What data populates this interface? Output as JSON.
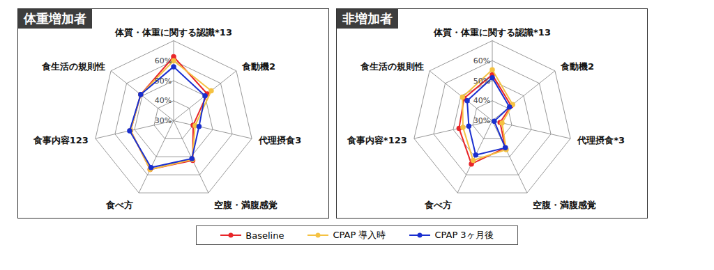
{
  "chart_data": [
    {
      "type": "radar",
      "title": "体重増加者",
      "categories": [
        "体質・体重に関する認識*13",
        "食動機2",
        "代理摂食3",
        "空腹・満腹感覚",
        "食べ方",
        "食事内容123",
        "食生活の規則性"
      ],
      "ylim": [
        30,
        70
      ],
      "yticks": [
        {
          "value": 30,
          "label": "30%"
        },
        {
          "value": 40,
          "label": "40%"
        },
        {
          "value": 50,
          "label": "50%"
        },
        {
          "value": 60,
          "label": "60%"
        }
      ],
      "grid": true,
      "legend": "bottom",
      "series": [
        {
          "name": "Baseline",
          "color": "#e8262a",
          "marker": "circle",
          "values": [
            62,
            51.5,
            40,
            52,
            57,
            52,
            51
          ]
        },
        {
          "name": "CPAP 導入時",
          "color": "#f5c242",
          "marker": "circle",
          "values": [
            60,
            54,
            41,
            51.5,
            57,
            52,
            51
          ]
        },
        {
          "name": "CPAP 3ヶ月後",
          "color": "#1a2fcf",
          "marker": "circle",
          "values": [
            57,
            50,
            43,
            51,
            56,
            52.5,
            51
          ]
        }
      ]
    },
    {
      "type": "radar",
      "title": "非増加者",
      "categories": [
        "体質・体重に関する認識*13",
        "食動機2",
        "代理摂食*3",
        "空腹・満腹感覚",
        "食べ方",
        "食事内容*123",
        "食生活の規則性"
      ],
      "ylim": [
        30,
        70
      ],
      "yticks": [
        {
          "value": 30,
          "label": "30%"
        },
        {
          "value": 40,
          "label": "40%"
        },
        {
          "value": 50,
          "label": "50%"
        },
        {
          "value": 60,
          "label": "60%"
        }
      ],
      "grid": true,
      "legend": "bottom",
      "series": [
        {
          "name": "Baseline",
          "color": "#e8262a",
          "marker": "circle",
          "values": [
            53,
            42,
            34,
            45,
            54,
            47,
            48
          ]
        },
        {
          "name": "CPAP 導入時",
          "color": "#f5c242",
          "marker": "circle",
          "values": [
            55.5,
            43,
            35,
            46,
            52,
            45,
            49
          ]
        },
        {
          "name": "CPAP 3ヶ月後",
          "color": "#1a2fcf",
          "marker": "circle",
          "values": [
            51.5,
            41,
            31,
            45,
            49,
            42,
            46
          ]
        }
      ]
    }
  ]
}
